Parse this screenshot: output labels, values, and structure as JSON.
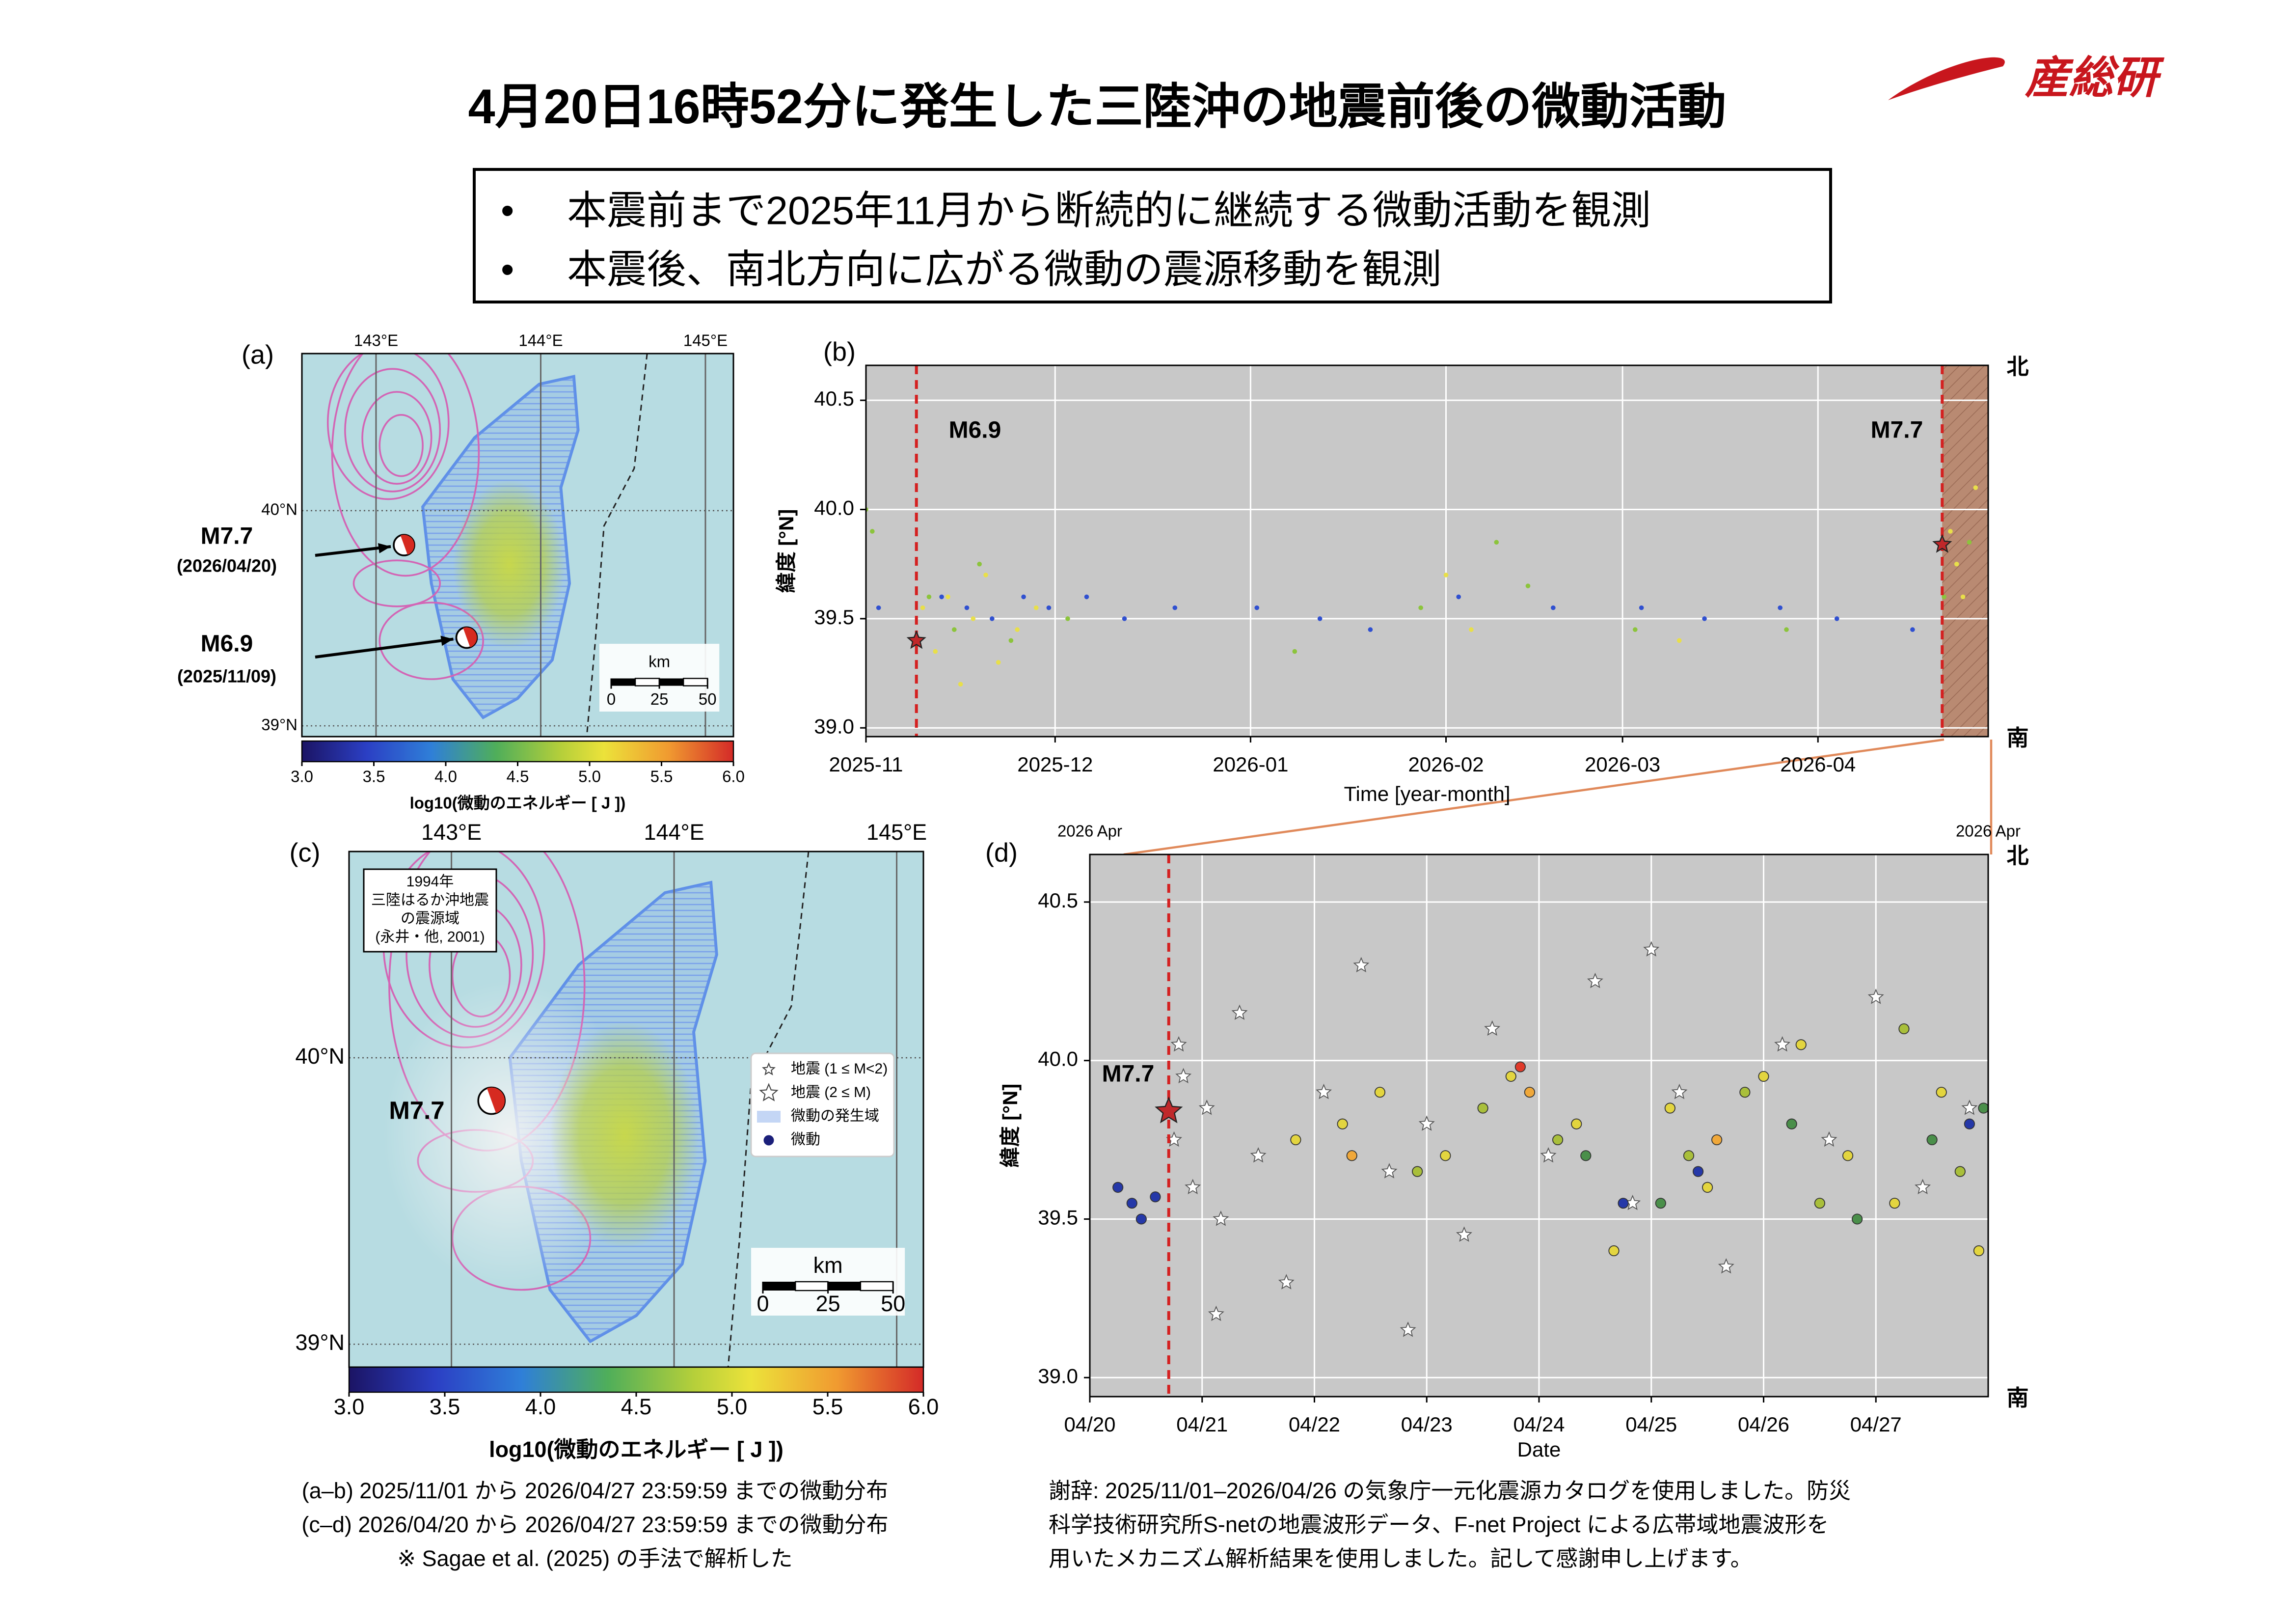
{
  "title": "4月20日16時52分に発生した三陸沖の地震前後の微動活動",
  "logo": "産総研",
  "bullets": [
    "本震前まで2025年11月から断続的に継続する微動活動を観測",
    "本震後、南北方向に広がる微動の震源移動を観測"
  ],
  "chart_data": [
    {
      "type": "map",
      "panel_label": "(a)",
      "xlim": [
        142.55,
        145.17
      ],
      "xticks": [
        {
          "value": 143,
          "label": "143°E"
        },
        {
          "value": 144,
          "label": "144°E"
        },
        {
          "value": 145,
          "label": "145°E"
        }
      ],
      "ylim": [
        38.95,
        40.73
      ],
      "yticks": [
        {
          "value": 39,
          "label": "39°N"
        },
        {
          "value": 40,
          "label": "40°N"
        }
      ],
      "events": [
        {
          "label": "M7.7",
          "date": "(2026/04/20)",
          "lon": 143.17,
          "lat": 39.84
        },
        {
          "label": "M6.9",
          "date": "(2025/11/09)",
          "lon": 143.55,
          "lat": 39.41
        }
      ],
      "scalebar": {
        "unit": "km",
        "ticks": [
          0,
          25,
          50
        ]
      },
      "colorbar": {
        "label": "log10(微動のエネルギー [ J ])",
        "lim": [
          3,
          6
        ],
        "ticks": [
          {
            "value": 3,
            "label": "3.0"
          },
          3.5,
          {
            "value": 4,
            "label": "4.0"
          },
          4.5,
          {
            "value": 5,
            "label": "5.0"
          },
          5.5,
          {
            "value": 6,
            "label": "6.0"
          }
        ]
      }
    },
    {
      "type": "scatter",
      "panel_label": "(b)",
      "xlabel": "Time [year-month]",
      "ylabel": "緯度 [°N]",
      "north_label": "北",
      "south_label": "南",
      "xlim": [
        "2025-11",
        "2026-04-28"
      ],
      "xticks": [
        "2025-11",
        "2025-12",
        "2026-01",
        "2026-02",
        "2026-03",
        "2026-04"
      ],
      "ylim": [
        38.96,
        40.66
      ],
      "yticks": [
        {
          "value": 39,
          "label": "39.0"
        },
        39.5,
        {
          "value": 40,
          "label": "40.0"
        },
        40.5
      ],
      "events": [
        {
          "label": "M6.9",
          "x": "2025-11-09",
          "y": 39.4
        },
        {
          "label": "M7.7",
          "x": "2026-04-20T16:52",
          "y": 39.84
        }
      ],
      "series": [
        {
          "color": "#e8df4a",
          "x": [
            "2025-11-10",
            "2025-11-12",
            "2025-11-14",
            "2025-11-16",
            "2025-11-18",
            "2025-11-20",
            "2025-11-22",
            "2025-11-25",
            "2025-11-28",
            "2026-02-01",
            "2026-02-05",
            "2026-03-10",
            "2026-04-22",
            "2026-04-24",
            "2026-04-26",
            "2026-04-23"
          ],
          "values": [
            39.55,
            39.35,
            39.6,
            39.2,
            39.5,
            39.7,
            39.3,
            39.45,
            39.55,
            39.7,
            39.45,
            39.4,
            39.9,
            39.6,
            40.1,
            39.75
          ]
        },
        {
          "color": "#8cc43c",
          "x": [
            "2025-11-01",
            "2025-11-02",
            "2025-11-11",
            "2025-11-15",
            "2025-11-19",
            "2025-11-24",
            "2025-12-03",
            "2026-01-08",
            "2026-01-28",
            "2026-02-09",
            "2026-02-14",
            "2026-03-03",
            "2026-03-27",
            "2026-04-21",
            "2026-04-25"
          ],
          "values": [
            40.0,
            39.9,
            39.6,
            39.45,
            39.75,
            39.4,
            39.5,
            39.35,
            39.55,
            39.85,
            39.65,
            39.45,
            39.45,
            39.6,
            39.85
          ]
        },
        {
          "color": "#3050d0",
          "x": [
            "2025-11-03",
            "2025-11-13",
            "2025-11-17",
            "2025-11-21",
            "2025-11-26",
            "2025-11-30",
            "2025-12-06",
            "2025-12-12",
            "2025-12-20",
            "2026-01-02",
            "2026-01-12",
            "2026-01-20",
            "2026-02-03",
            "2026-02-18",
            "2026-03-04",
            "2026-03-14",
            "2026-03-26",
            "2026-04-04",
            "2026-04-16"
          ],
          "values": [
            39.55,
            39.6,
            39.55,
            39.5,
            39.6,
            39.55,
            39.6,
            39.5,
            39.55,
            39.55,
            39.5,
            39.45,
            39.6,
            39.55,
            39.55,
            39.5,
            39.55,
            39.5,
            39.45
          ]
        }
      ]
    },
    {
      "type": "map",
      "panel_label": "(c)",
      "xlim": [
        142.54,
        145.12
      ],
      "xticks": [
        {
          "value": 143,
          "label": "143°E"
        },
        {
          "value": 144,
          "label": "144°E"
        },
        {
          "value": 145,
          "label": "145°E"
        }
      ],
      "ylim": [
        38.92,
        40.72
      ],
      "yticks": [
        {
          "value": 39,
          "label": "39°N"
        },
        {
          "value": 40,
          "label": "40°N"
        }
      ],
      "events": [
        {
          "label": "M7.7",
          "lon": 143.18,
          "lat": 39.85
        }
      ],
      "inset": [
        "1994年",
        "三陸はるか沖地震",
        "の震源域",
        "(永井・他, 2001)"
      ],
      "legend": [
        "地震 (1 ≤ M<2)",
        "地震 (2 ≤ M)",
        "微動の発生域",
        "微動"
      ],
      "scalebar": {
        "unit": "km",
        "ticks": [
          0,
          25,
          50
        ]
      },
      "colorbar": {
        "label": "log10(微動のエネルギー [ J ])",
        "lim": [
          3,
          6
        ],
        "ticks": [
          {
            "value": 3,
            "label": "3.0"
          },
          3.5,
          {
            "value": 4,
            "label": "4.0"
          },
          4.5,
          {
            "value": 5,
            "label": "5.0"
          },
          5.5,
          {
            "value": 6,
            "label": "6.0"
          }
        ]
      }
    },
    {
      "type": "scatter",
      "panel_label": "(d)",
      "xlabel": "Date",
      "ylabel": "緯度 [°N]",
      "north_label": "北",
      "south_label": "南",
      "corner_labels": [
        "2026 Apr",
        "2026 Apr"
      ],
      "xlim": [
        "2026-04-20",
        "2026-04-28"
      ],
      "xticks": [
        {
          "value": "2026-04-20",
          "label": "04/20"
        },
        {
          "value": "2026-04-21",
          "label": "04/21"
        },
        {
          "value": "2026-04-22",
          "label": "04/22"
        },
        {
          "value": "2026-04-23",
          "label": "04/23"
        },
        {
          "value": "2026-04-24",
          "label": "04/24"
        },
        {
          "value": "2026-04-25",
          "label": "04/25"
        },
        {
          "value": "2026-04-26",
          "label": "04/26"
        },
        {
          "value": "2026-04-27",
          "label": "04/27"
        }
      ],
      "ylim": [
        38.94,
        40.65
      ],
      "yticks": [
        {
          "value": 39,
          "label": "39.0"
        },
        39.5,
        {
          "value": 40,
          "label": "40.0"
        },
        40.5
      ],
      "events": [
        {
          "label": "M7.7",
          "x": "2026-04-20T16:52",
          "y": 39.84
        }
      ],
      "series": [
        {
          "color": "#ffffff",
          "marker": "star",
          "x": [
            "2026-04-20T18:00",
            "2026-04-20T20:00",
            "2026-04-20T22:00",
            "2026-04-21T01:00",
            "2026-04-21T04:00",
            "2026-04-21T08:00",
            "2026-04-21T12:00",
            "2026-04-21T18:00",
            "2026-04-22T02:00",
            "2026-04-22T10:00",
            "2026-04-22T16:00",
            "2026-04-23T00:00",
            "2026-04-23T08:00",
            "2026-04-23T14:00",
            "2026-04-24T02:00",
            "2026-04-24T12:00",
            "2026-04-24T20:00",
            "2026-04-25T06:00",
            "2026-04-25T16:00",
            "2026-04-26T04:00",
            "2026-04-26T14:00",
            "2026-04-27T00:00",
            "2026-04-27T10:00",
            "2026-04-27T20:00",
            "2026-04-21T03:00",
            "2026-04-22T20:00",
            "2026-04-25T00:00",
            "2026-04-20T19:00"
          ],
          "values": [
            39.75,
            39.95,
            39.6,
            39.85,
            39.5,
            40.15,
            39.7,
            39.3,
            39.9,
            40.3,
            39.65,
            39.8,
            39.45,
            40.1,
            39.7,
            40.25,
            39.55,
            39.9,
            39.35,
            40.05,
            39.75,
            40.2,
            39.6,
            39.85,
            39.2,
            39.15,
            40.35,
            40.05
          ]
        },
        {
          "color": "#e3d53f",
          "x": [
            "2026-04-21T20:00",
            "2026-04-22T06:00",
            "2026-04-22T14:00",
            "2026-04-23T04:00",
            "2026-04-23T18:00",
            "2026-04-24T08:00",
            "2026-04-24T16:00",
            "2026-04-25T04:00",
            "2026-04-25T12:00",
            "2026-04-26T00:00",
            "2026-04-26T08:00",
            "2026-04-26T18:00",
            "2026-04-27T04:00",
            "2026-04-27T14:00",
            "2026-04-27T22:00"
          ],
          "values": [
            39.75,
            39.8,
            39.9,
            39.7,
            39.95,
            39.8,
            39.4,
            39.85,
            39.6,
            39.95,
            40.05,
            39.7,
            39.55,
            39.9,
            39.4
          ]
        },
        {
          "color": "#a9bf3b",
          "x": [
            "2026-04-22T22:00",
            "2026-04-23T12:00",
            "2026-04-24T04:00",
            "2026-04-25T08:00",
            "2026-04-25T20:00",
            "2026-04-26T12:00",
            "2026-04-27T06:00",
            "2026-04-27T18:00"
          ],
          "values": [
            39.65,
            39.85,
            39.75,
            39.7,
            39.9,
            39.55,
            40.1,
            39.65
          ]
        },
        {
          "color": "#4a8f4a",
          "x": [
            "2026-04-24T10:00",
            "2026-04-25T02:00",
            "2026-04-26T06:00",
            "2026-04-26T20:00",
            "2026-04-27T12:00",
            "2026-04-27T23:00"
          ],
          "values": [
            39.7,
            39.55,
            39.8,
            39.5,
            39.75,
            39.85
          ]
        },
        {
          "color": "#2538a8",
          "x": [
            "2026-04-20T06:00",
            "2026-04-20T09:00",
            "2026-04-20T11:00",
            "2026-04-20T14:00",
            "2026-04-24T18:00",
            "2026-04-25T10:00",
            "2026-04-27T20:00"
          ],
          "values": [
            39.6,
            39.55,
            39.5,
            39.57,
            39.55,
            39.65,
            39.8
          ]
        },
        {
          "color": "#f0a83a",
          "x": [
            "2026-04-22T08:00",
            "2026-04-23T22:00",
            "2026-04-25T14:00"
          ],
          "values": [
            39.7,
            39.9,
            39.75
          ]
        },
        {
          "color": "#e03a2a",
          "x": [
            "2026-04-23T20:00"
          ],
          "values": [
            39.98
          ]
        }
      ]
    }
  ],
  "captions": [
    "(a–b) 2025/11/01 から 2026/04/27 23:59:59 までの微動分布",
    "(c–d) 2026/04/20 から 2026/04/27 23:59:59 までの微動分布",
    "※ Sagae et al. (2025) の手法で解析した"
  ],
  "acknowledgment": [
    "謝辞: 2025/11/01–2026/04/26 の気象庁一元化震源カタログを使用しました。防災",
    "科学技術研究所S-netの地震波形データ、F-net Project による広帯域地震波形を",
    "用いたメカニズム解析結果を使用しました。記して感謝申し上げます。"
  ]
}
